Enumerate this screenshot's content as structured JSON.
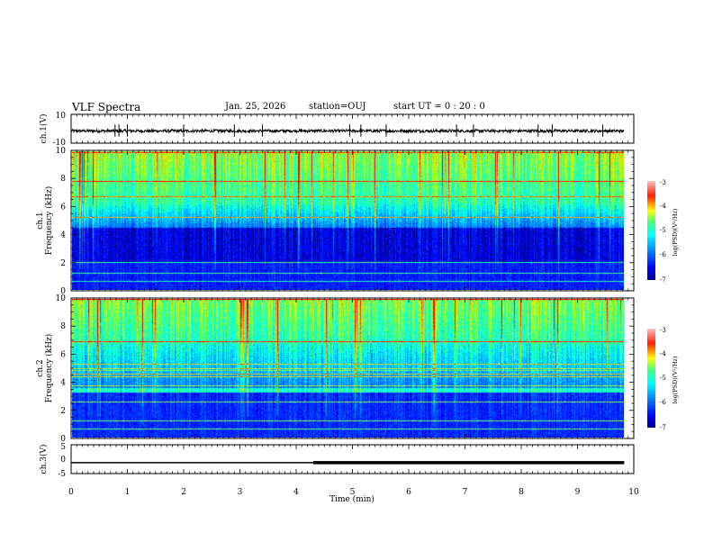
{
  "header": {
    "title": "VLF Spectra",
    "date": "Jan. 25, 2026",
    "station": "station=OUJ",
    "start": "start UT = 0 : 20 : 0"
  },
  "colors": {
    "background": "#ffffff",
    "axis": "#000000",
    "colormap": [
      "#00008f",
      "#0000ff",
      "#00a0ff",
      "#00ffff",
      "#40ff80",
      "#c0ff00",
      "#ffff00",
      "#ff8000",
      "#ff0000",
      "#800000"
    ]
  },
  "chart_data": [
    {
      "type": "line",
      "name": "ch1-waveform",
      "ylabel": "ch.1(V)",
      "ylim": [
        -10,
        10
      ],
      "yticks": [
        "10",
        "-10"
      ],
      "xlim": [
        0,
        10
      ],
      "baseline": -1.5,
      "noise_amplitude": 1.0,
      "spikes_min": [
        0.78,
        0.85,
        1.0,
        2.0,
        2.9,
        3.4,
        4.95,
        5.15,
        5.6,
        6.85,
        7.15,
        8.3,
        8.55,
        9.45
      ]
    },
    {
      "type": "heatmap",
      "name": "ch1-spectrogram",
      "ylabel": "ch.1 Frequency (kHz)",
      "ylim": [
        0,
        10
      ],
      "yticks": [
        "0",
        "2",
        "4",
        "6",
        "8",
        "10"
      ],
      "xlim": [
        0,
        9.83
      ],
      "colorbar": {
        "label": "log(PSD)(V²/Hz)",
        "range": [
          -7,
          -3
        ],
        "ticks": [
          "-3",
          "-4",
          "-5",
          "-6",
          "-7"
        ]
      }
    },
    {
      "type": "heatmap",
      "name": "ch2-spectrogram",
      "ylabel": "ch.2 Frequency (kHz)",
      "ylim": [
        0,
        10
      ],
      "yticks": [
        "0",
        "2",
        "4",
        "6",
        "8",
        "10"
      ],
      "xlim": [
        0,
        9.83
      ],
      "colorbar": {
        "label": "log(PSD)(V²/Hz)",
        "range": [
          -7,
          -3
        ],
        "ticks": [
          "-3",
          "-4",
          "-5",
          "-6",
          "-7"
        ]
      }
    },
    {
      "type": "line",
      "name": "ch3-signal",
      "ylabel": "ch.3(V)",
      "ylim": [
        -5,
        5
      ],
      "yticks": [
        "5",
        "0",
        "-5"
      ],
      "xlim": [
        0,
        10
      ],
      "x": [
        0,
        4.3,
        4.3,
        9.83
      ],
      "y": [
        -1.2,
        -1.2,
        -1.2,
        -1.2
      ],
      "thick_from": 4.3
    }
  ],
  "xaxis": {
    "label": "Time (min)",
    "ticks": [
      "0",
      "1",
      "2",
      "3",
      "4",
      "5",
      "6",
      "7",
      "8",
      "9",
      "10"
    ],
    "range": [
      0,
      10
    ]
  }
}
